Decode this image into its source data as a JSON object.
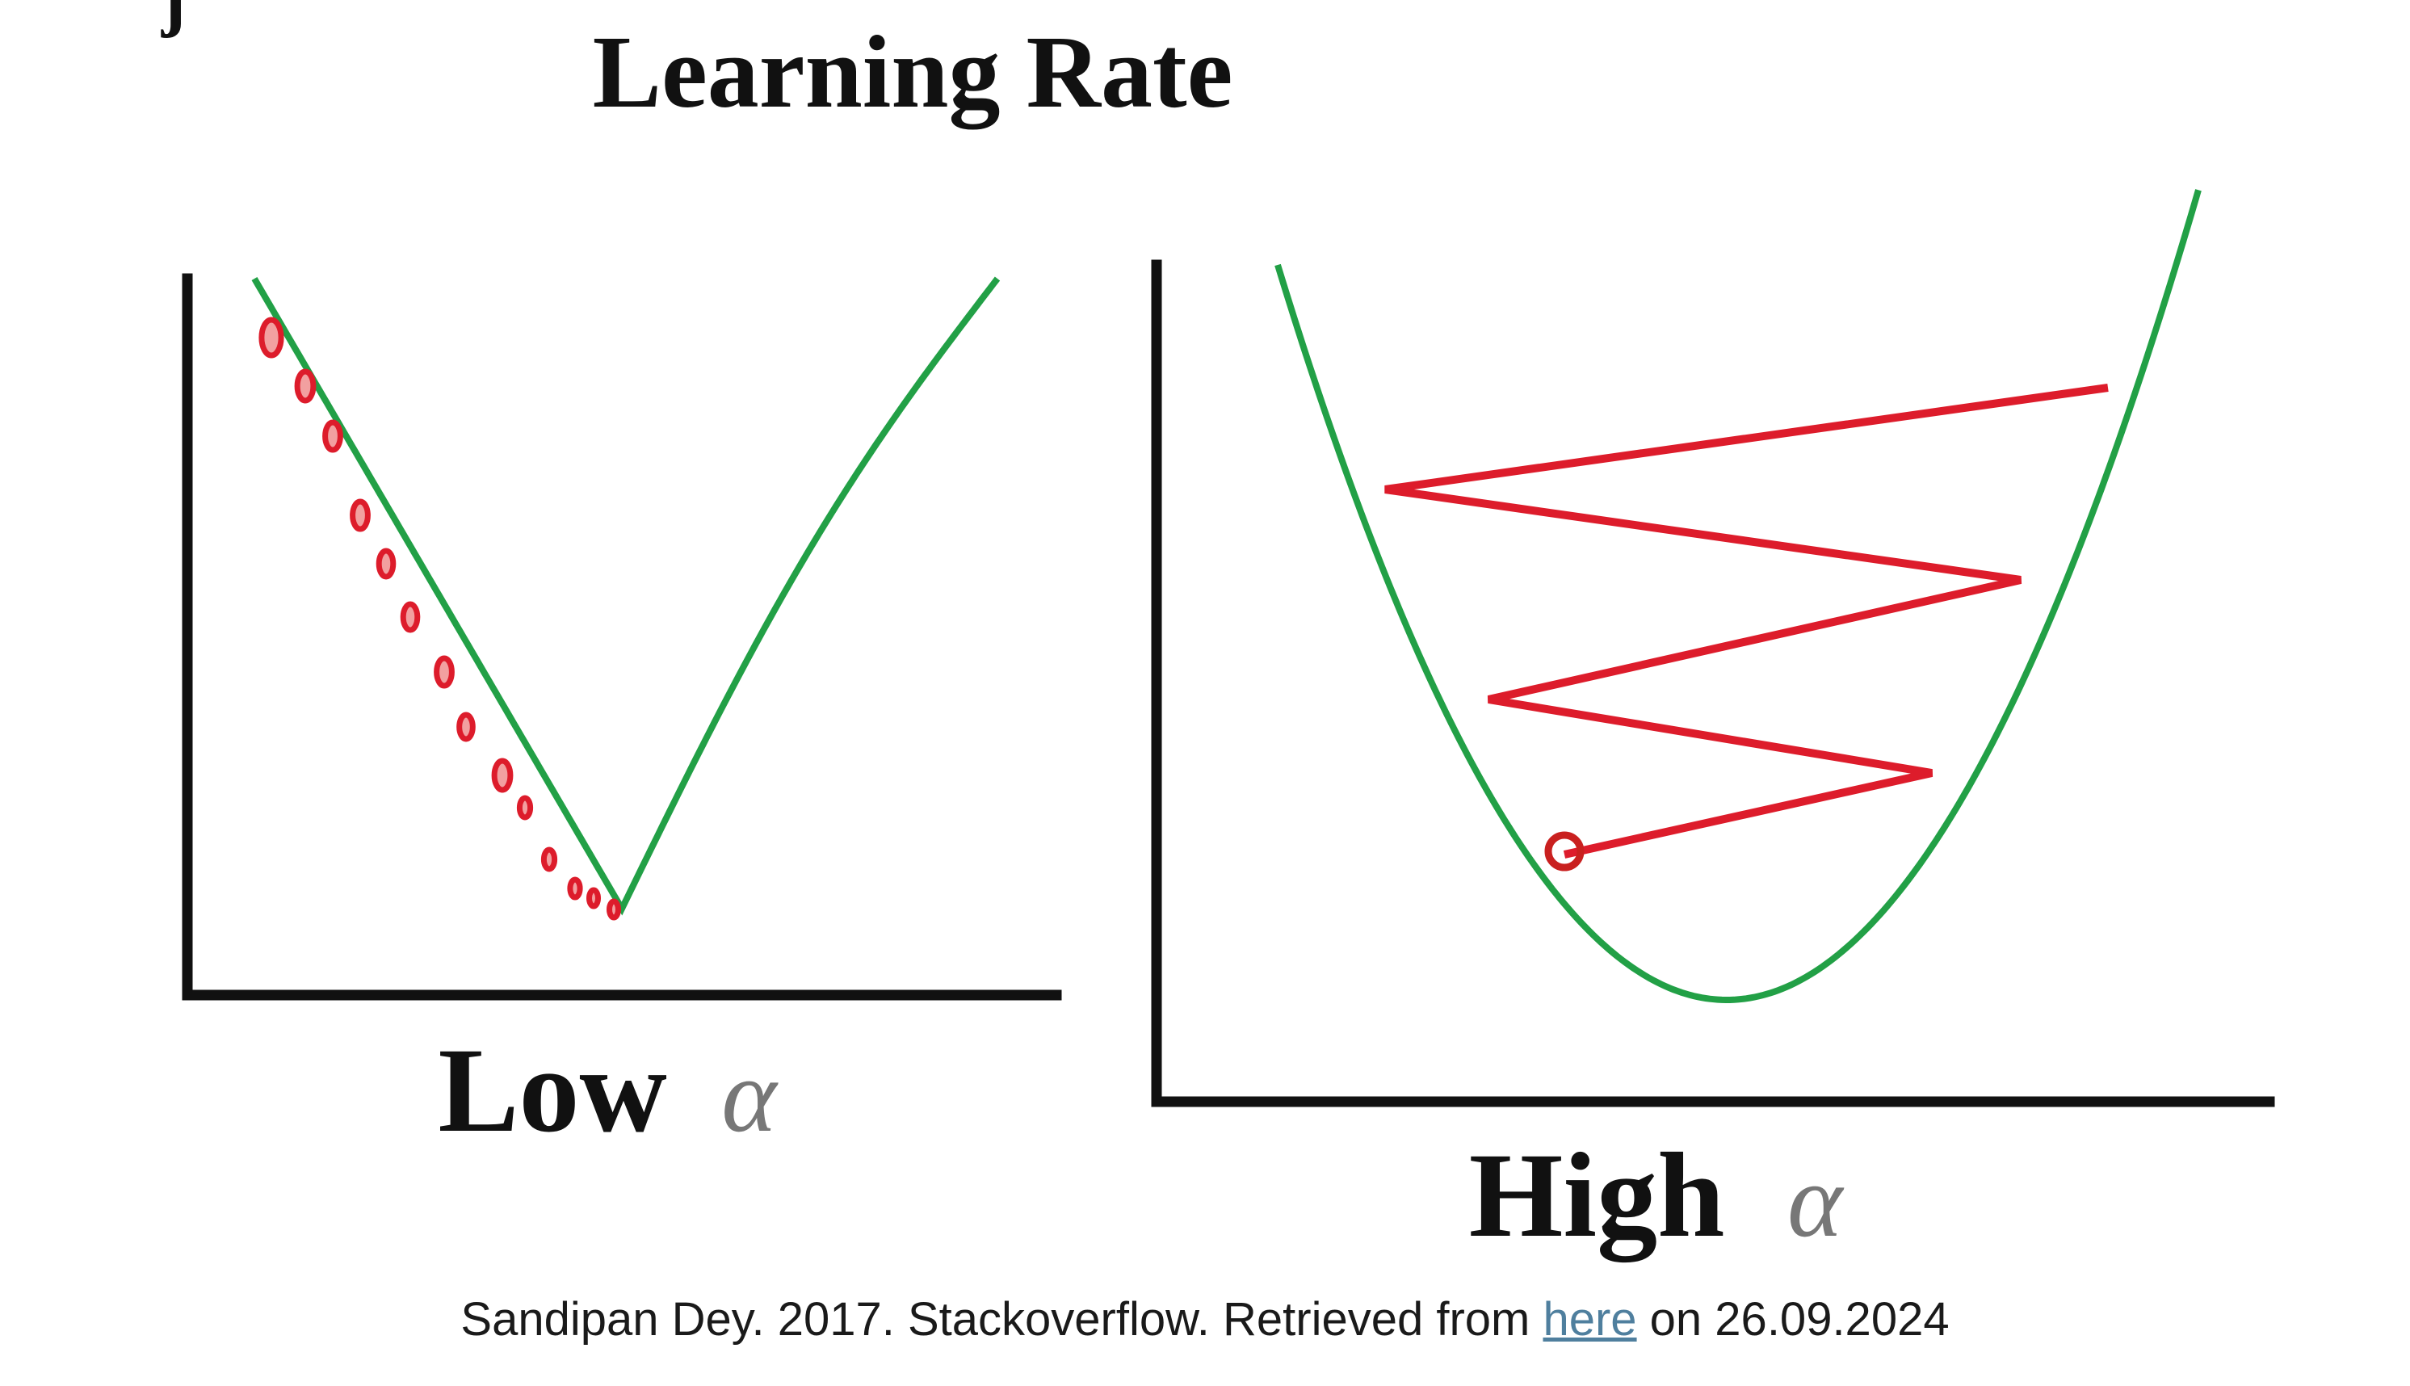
{
  "figure": {
    "title": "Learning Rate",
    "corner_mark": "j",
    "panels": [
      {
        "label": "Low",
        "alpha": "α"
      },
      {
        "label": "High",
        "alpha": "α"
      }
    ]
  },
  "caption": {
    "prefix": "Sandipan Dey. 2017. Stackoverflow. Retrieved from ",
    "link_text": "here",
    "suffix": " on 26.09.2024"
  },
  "colors": {
    "curve": "#22a046",
    "steps": "#dd1c2b",
    "axis": "#111111",
    "link": "#4f7f9e"
  }
}
